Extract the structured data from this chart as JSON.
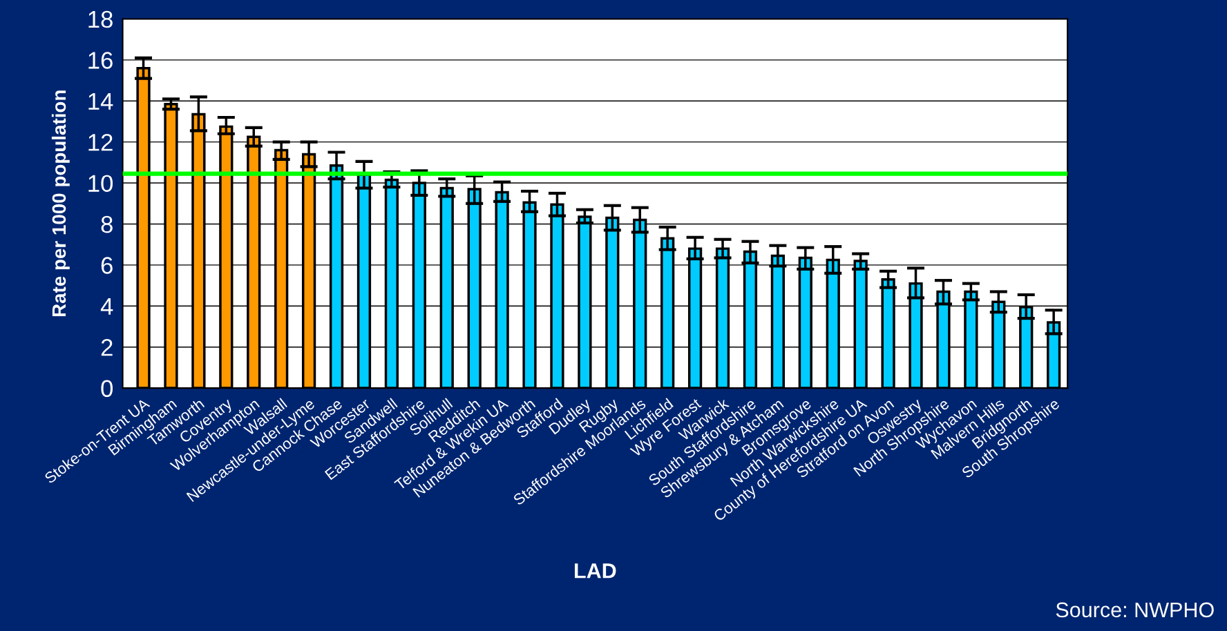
{
  "chart_data": {
    "type": "bar",
    "xlabel": "LAD",
    "ylabel": "Rate per 1000 population",
    "categories": [
      "Stoke-on-Trent UA",
      "Birmingham",
      "Tamworth",
      "Coventry",
      "Wolverhampton",
      "Walsall",
      "Newcastle-under-Lyme",
      "Cannock Chase",
      "Worcester",
      "Sandwell",
      "East Staffordshire",
      "Solihull",
      "Redditch",
      "Telford & Wrekin UA",
      "Nuneaton & Bedworth",
      "Stafford",
      "Dudley",
      "Rugby",
      "Staffordshire Moorlands",
      "Lichfield",
      "Wyre Forest",
      "Warwick",
      "South Staffordshire",
      "Shrewsbury & Atcham",
      "Bromsgrove",
      "North Warwickshire",
      "County of Herefordshire UA",
      "Stratford on Avon",
      "Oswestry",
      "North Shropshire",
      "Wychavon",
      "Malvern Hills",
      "Bridgnorth",
      "South Shropshire"
    ],
    "values": [
      15.6,
      13.85,
      13.35,
      12.75,
      12.25,
      11.6,
      11.4,
      10.85,
      10.4,
      10.15,
      10.0,
      9.75,
      9.7,
      9.55,
      9.05,
      8.95,
      8.35,
      8.3,
      8.2,
      7.3,
      6.8,
      6.8,
      6.65,
      6.45,
      6.35,
      6.25,
      6.2,
      5.3,
      5.1,
      4.7,
      4.7,
      4.2,
      3.95,
      3.2
    ],
    "errors": [
      [
        15.1,
        16.1
      ],
      [
        13.6,
        14.1
      ],
      [
        12.55,
        14.2
      ],
      [
        12.4,
        13.2
      ],
      [
        11.8,
        12.7
      ],
      [
        11.15,
        12.0
      ],
      [
        10.8,
        12.0
      ],
      [
        10.2,
        11.5
      ],
      [
        9.75,
        11.05
      ],
      [
        9.8,
        10.55
      ],
      [
        9.4,
        10.6
      ],
      [
        9.35,
        10.2
      ],
      [
        9.0,
        10.35
      ],
      [
        9.1,
        10.05
      ],
      [
        8.6,
        9.6
      ],
      [
        8.4,
        9.5
      ],
      [
        8.05,
        8.7
      ],
      [
        7.7,
        8.9
      ],
      [
        7.6,
        8.8
      ],
      [
        6.75,
        7.85
      ],
      [
        6.3,
        7.35
      ],
      [
        6.35,
        7.25
      ],
      [
        6.1,
        7.15
      ],
      [
        5.95,
        6.95
      ],
      [
        5.8,
        6.85
      ],
      [
        5.6,
        6.9
      ],
      [
        5.8,
        6.55
      ],
      [
        4.9,
        5.7
      ],
      [
        4.4,
        5.85
      ],
      [
        4.1,
        5.25
      ],
      [
        4.3,
        5.1
      ],
      [
        3.7,
        4.7
      ],
      [
        3.4,
        4.55
      ],
      [
        2.65,
        3.8
      ]
    ],
    "colors": [
      "#ff9900",
      "#ff9900",
      "#ff9900",
      "#ff9900",
      "#ff9900",
      "#ff9900",
      "#ff9900",
      "#00ccff",
      "#00ccff",
      "#00ccff",
      "#00ccff",
      "#00ccff",
      "#00ccff",
      "#00ccff",
      "#00ccff",
      "#00ccff",
      "#00ccff",
      "#00ccff",
      "#00ccff",
      "#00ccff",
      "#00ccff",
      "#00ccff",
      "#00ccff",
      "#00ccff",
      "#00ccff",
      "#00ccff",
      "#00ccff",
      "#00ccff",
      "#00ccff",
      "#00ccff",
      "#00ccff",
      "#00ccff",
      "#00ccff",
      "#00ccff"
    ],
    "ylim": [
      0,
      18
    ],
    "yticks": [
      0,
      2,
      4,
      6,
      8,
      10,
      12,
      14,
      16,
      18
    ],
    "grid": "y",
    "ref_lines": [
      {
        "axis": "y",
        "value": 10.45,
        "color": "#00ff00"
      }
    ],
    "annotations": [
      "Source: NWPHO"
    ]
  }
}
